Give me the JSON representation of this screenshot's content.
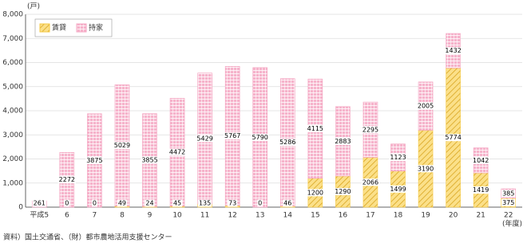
{
  "chart_data": {
    "type": "stacked-bar",
    "unit_label": "(戸)",
    "x_label": "(年度)",
    "source": "資料）国土交通省、（財）都市農地活用支援センター",
    "categories": [
      "平成5",
      "6",
      "7",
      "8",
      "9",
      "10",
      "11",
      "12",
      "13",
      "14",
      "15",
      "16",
      "17",
      "18",
      "19",
      "20",
      "21",
      "22"
    ],
    "series": [
      {
        "name": "賃貸",
        "color": "#f5c842",
        "values": [
          0,
          0,
          0,
          49,
          24,
          45,
          135,
          73,
          0,
          46,
          1200,
          1290,
          2066,
          1499,
          3190,
          5774,
          1419,
          375
        ]
      },
      {
        "name": "持家",
        "color": "#f4a3c0",
        "values": [
          261,
          2272,
          3875,
          5029,
          3855,
          4472,
          5429,
          5767,
          5790,
          5286,
          4115,
          2883,
          2295,
          1123,
          2005,
          1432,
          1042,
          385
        ]
      }
    ],
    "ylim": [
      0,
      8000
    ],
    "yticks": [
      0,
      {
        "value": 1000,
        "label": "1,000"
      },
      {
        "value": 2000,
        "label": "2,000"
      },
      {
        "value": 3000,
        "label": "3,000"
      },
      {
        "value": 4000,
        "label": "4,000"
      },
      {
        "value": 5000,
        "label": "5,000"
      },
      {
        "value": 6000,
        "label": "6,000"
      },
      {
        "value": 7000,
        "label": "7,000"
      },
      {
        "value": 8000,
        "label": "8,000"
      }
    ],
    "grid": true,
    "legend": "top-left"
  }
}
